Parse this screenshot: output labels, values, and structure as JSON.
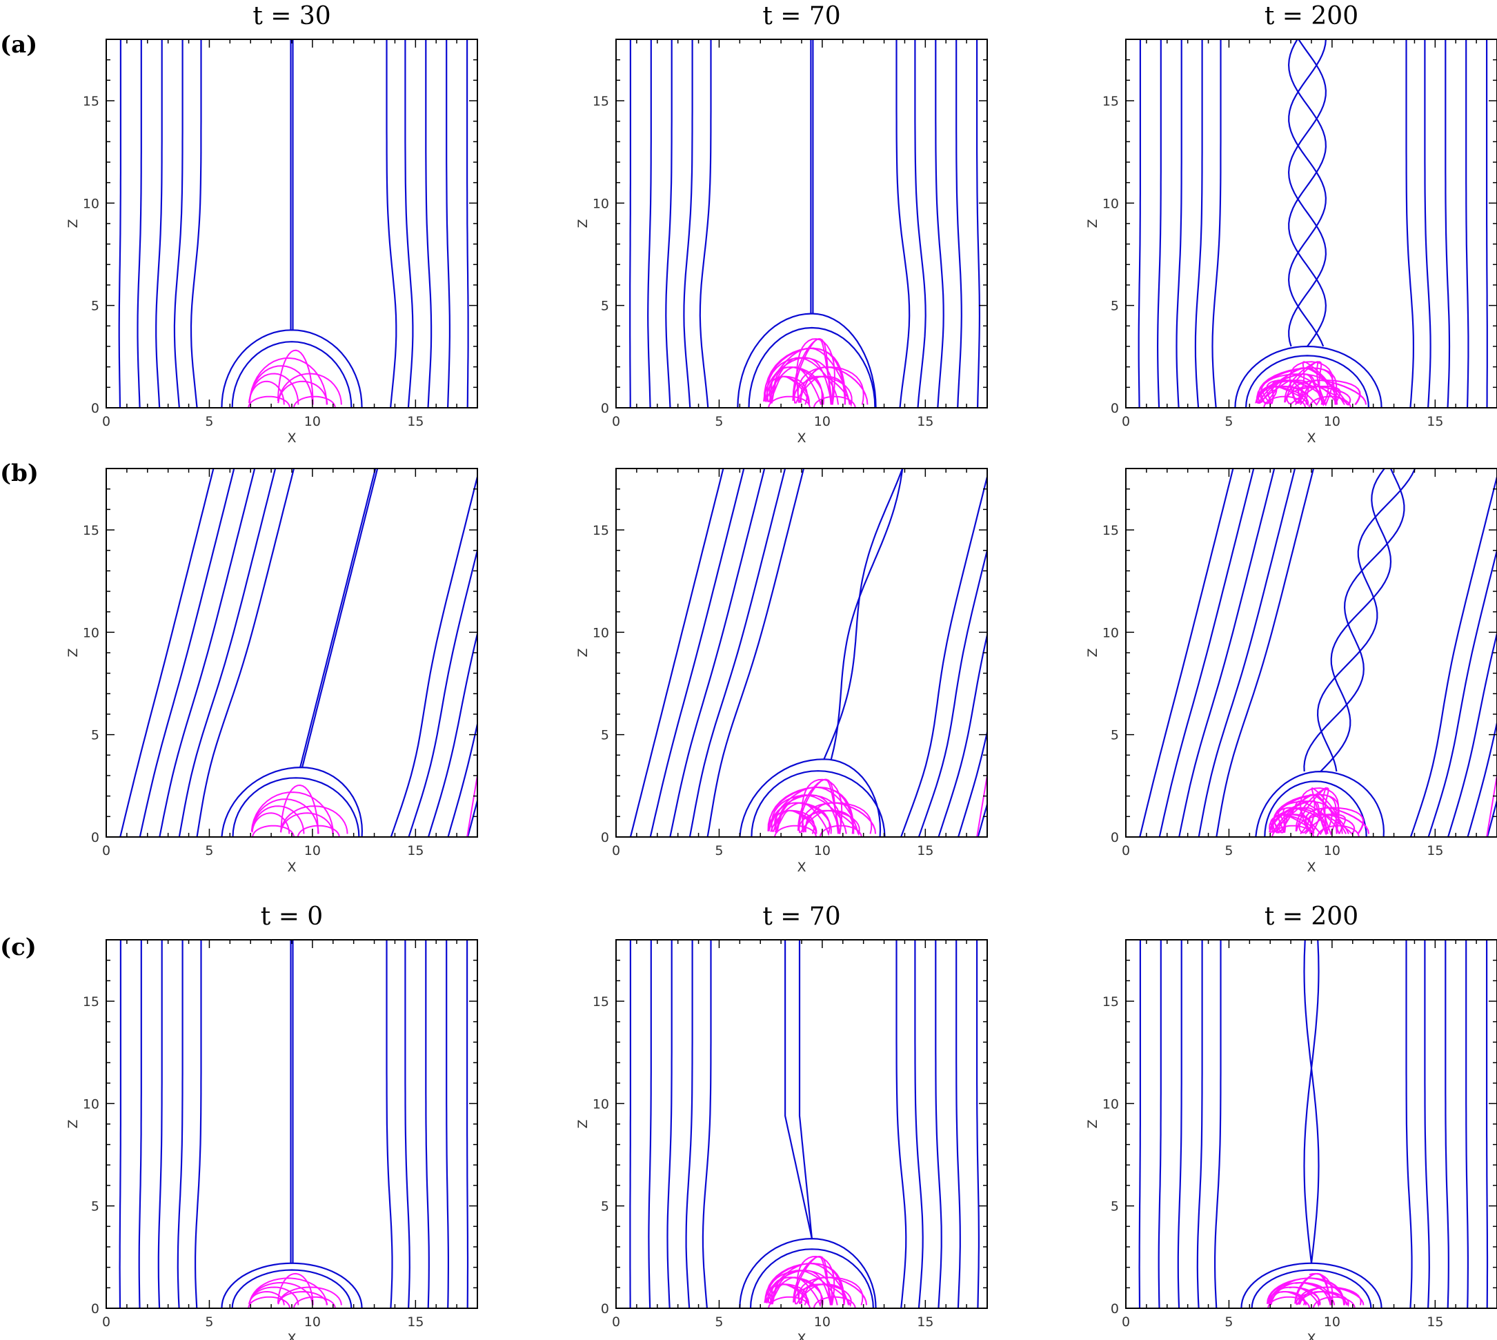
{
  "figure": {
    "row_labels": [
      "(a)",
      "(b)",
      "(c)"
    ],
    "colors": {
      "field_line": "#0a0ad2",
      "closed_field_line": "#ff14ff",
      "frame": "#000000"
    }
  },
  "chart_data": [
    {
      "type": "line",
      "row": "(a)",
      "title": "t = 30",
      "xlabel": "X",
      "ylabel": "Z",
      "xlim": [
        0,
        18
      ],
      "ylim": [
        0,
        18
      ],
      "xticks": [
        0,
        5,
        10,
        15
      ],
      "yticks": [
        0,
        5,
        10,
        15
      ],
      "tilt": 0,
      "dome": {
        "center": 9,
        "left": 5.6,
        "right": 12.4,
        "height": 3.8
      },
      "spine_top": "straight",
      "twist": 0
    },
    {
      "type": "line",
      "row": "(a)",
      "title": "t = 70",
      "xlabel": "X",
      "ylabel": "Z",
      "xlim": [
        0,
        18
      ],
      "ylim": [
        0,
        18
      ],
      "xticks": [
        0,
        5,
        10,
        15
      ],
      "yticks": [
        0,
        5,
        10,
        15
      ],
      "tilt": 0,
      "dome": {
        "center": 9.5,
        "left": 5.9,
        "right": 12.6,
        "height": 4.6
      },
      "spine_top": "straight",
      "twist": 0.5
    },
    {
      "type": "line",
      "row": "(a)",
      "title": "t = 200",
      "xlabel": "X",
      "ylabel": "Z",
      "xlim": [
        0,
        18
      ],
      "ylim": [
        0,
        18
      ],
      "xticks": [
        0,
        5,
        10,
        15
      ],
      "yticks": [
        0,
        5,
        10,
        15
      ],
      "tilt": 0,
      "dome": {
        "center": 8.8,
        "left": 5.3,
        "right": 12.4,
        "height": 3.0
      },
      "spine_top": "braided",
      "twist": 1
    },
    {
      "type": "line",
      "row": "(b)",
      "title": "",
      "xlabel": "X",
      "ylabel": "Z",
      "xlim": [
        0,
        18
      ],
      "ylim": [
        0,
        18
      ],
      "xticks": [
        0,
        5,
        10,
        15
      ],
      "yticks": [
        0,
        5,
        10,
        15
      ],
      "tilt": 0.25,
      "dome": {
        "center": 9.2,
        "left": 5.6,
        "right": 12.4,
        "height": 3.4
      },
      "spine_top": "straight",
      "twist": 0
    },
    {
      "type": "line",
      "row": "(b)",
      "title": "",
      "xlabel": "X",
      "ylabel": "Z",
      "xlim": [
        0,
        18
      ],
      "ylim": [
        0,
        18
      ],
      "xticks": [
        0,
        5,
        10,
        15
      ],
      "yticks": [
        0,
        5,
        10,
        15
      ],
      "tilt": 0.25,
      "dome": {
        "center": 9.8,
        "left": 6.0,
        "right": 12.8,
        "height": 3.8
      },
      "spine_top": "wavy",
      "twist": 0.5
    },
    {
      "type": "line",
      "row": "(b)",
      "title": "",
      "xlabel": "X",
      "ylabel": "Z",
      "xlim": [
        0,
        18
      ],
      "ylim": [
        0,
        18
      ],
      "xticks": [
        0,
        5,
        10,
        15
      ],
      "yticks": [
        0,
        5,
        10,
        15
      ],
      "tilt": 0.25,
      "dome": {
        "center": 9.2,
        "left": 6.3,
        "right": 12.5,
        "height": 3.2
      },
      "spine_top": "braided",
      "twist": 1
    },
    {
      "type": "line",
      "row": "(c)",
      "title": "t = 0",
      "xlabel": "X",
      "ylabel": "Z",
      "xlim": [
        0,
        18
      ],
      "ylim": [
        0,
        18
      ],
      "xticks": [
        0,
        5,
        10,
        15
      ],
      "yticks": [
        0,
        5,
        10,
        15
      ],
      "tilt": 0,
      "dome": {
        "center": 9,
        "left": 5.6,
        "right": 12.4,
        "height": 2.2
      },
      "spine_top": "straight",
      "twist": 0
    },
    {
      "type": "line",
      "row": "(c)",
      "title": "t = 70",
      "xlabel": "X",
      "ylabel": "Z",
      "xlim": [
        0,
        18
      ],
      "ylim": [
        0,
        18
      ],
      "xticks": [
        0,
        5,
        10,
        15
      ],
      "yticks": [
        0,
        5,
        10,
        15
      ],
      "tilt": 0,
      "dome": {
        "center": 9.5,
        "left": 6.0,
        "right": 12.6,
        "height": 3.4
      },
      "spine_top": "lean",
      "twist": 0.5
    },
    {
      "type": "line",
      "row": "(c)",
      "title": "t = 200",
      "xlabel": "X",
      "ylabel": "Z",
      "xlim": [
        0,
        18
      ],
      "ylim": [
        0,
        18
      ],
      "xticks": [
        0,
        5,
        10,
        15
      ],
      "yticks": [
        0,
        5,
        10,
        15
      ],
      "tilt": 0,
      "dome": {
        "center": 9,
        "left": 5.6,
        "right": 12.4,
        "height": 2.2
      },
      "spine_top": "crossed",
      "twist": 0.3
    }
  ]
}
